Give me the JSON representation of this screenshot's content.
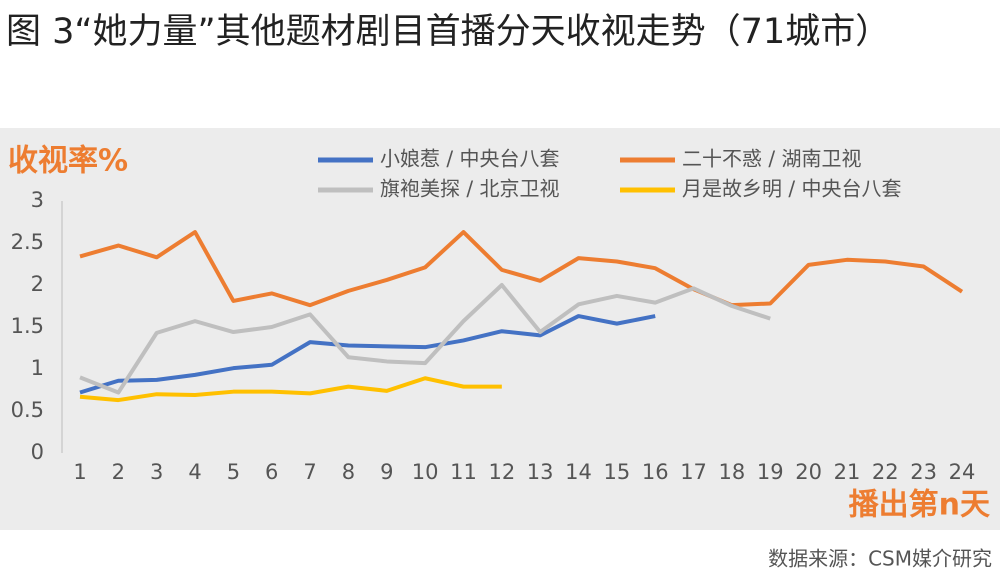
{
  "title": "图 3“她力量”其他题材剧目首播分天收视走势（71城市）",
  "source": "数据来源：CSM媒介研究",
  "chart_data": {
    "type": "line",
    "y_label": "收视率%",
    "x_label": "播出第n天",
    "categories": [
      "1",
      "2",
      "3",
      "4",
      "5",
      "6",
      "7",
      "8",
      "9",
      "10",
      "11",
      "12",
      "13",
      "14",
      "15",
      "16",
      "17",
      "18",
      "19",
      "20",
      "21",
      "22",
      "23",
      "24"
    ],
    "ylim": [
      0,
      3
    ],
    "yticks": [
      0,
      0.5,
      1,
      1.5,
      2,
      2.5,
      3
    ],
    "grid": false,
    "series": [
      {
        "name": "小娘惹 / 中央台八套",
        "color": "#4472c4",
        "values": [
          0.72,
          0.86,
          0.87,
          0.93,
          1.01,
          1.05,
          1.32,
          1.28,
          1.27,
          1.26,
          1.34,
          1.45,
          1.4,
          1.63,
          1.54,
          1.63,
          null,
          null,
          null,
          null,
          null,
          null,
          null,
          null
        ]
      },
      {
        "name": "二十不惑 / 湖南卫视",
        "color": "#ed7d31",
        "values": [
          2.34,
          2.47,
          2.33,
          2.63,
          1.81,
          1.9,
          1.76,
          1.93,
          2.06,
          2.21,
          2.63,
          2.18,
          2.05,
          2.32,
          2.28,
          2.2,
          1.95,
          1.76,
          1.78,
          2.24,
          2.3,
          2.28,
          2.22,
          1.92
        ]
      },
      {
        "name": "旗袍美探 / 北京卫视",
        "color": "#bfbfbf",
        "values": [
          0.9,
          0.72,
          1.43,
          1.57,
          1.44,
          1.5,
          1.65,
          1.14,
          1.09,
          1.07,
          1.57,
          2.0,
          1.44,
          1.77,
          1.87,
          1.79,
          1.96,
          1.75,
          1.6,
          null,
          null,
          null,
          null,
          null
        ]
      },
      {
        "name": "月是故乡明 / 中央台八套",
        "color": "#ffc000",
        "values": [
          0.67,
          0.63,
          0.7,
          0.69,
          0.73,
          0.73,
          0.71,
          0.79,
          0.74,
          0.89,
          0.79,
          0.79,
          null,
          null,
          null,
          null,
          null,
          null,
          null,
          null,
          null,
          null,
          null,
          null
        ]
      }
    ]
  }
}
